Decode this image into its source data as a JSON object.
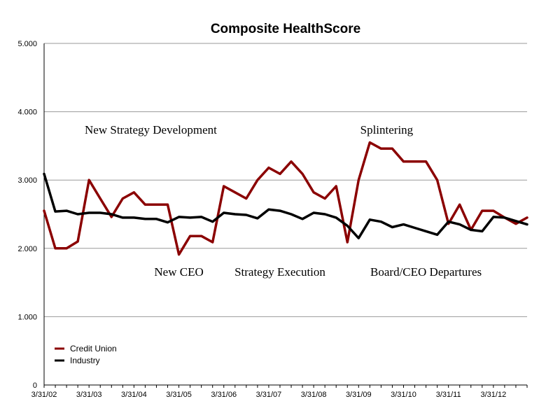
{
  "chart_data": {
    "type": "line",
    "title": "Composite HealthScore",
    "xlabel": "",
    "ylabel": "",
    "ylim": [
      0,
      5
    ],
    "y_ticks": [
      "0",
      "1.000",
      "2.000",
      "3.000",
      "4.000",
      "5.000"
    ],
    "y_tick_values": [
      0,
      1,
      2,
      3,
      4,
      5
    ],
    "x_tick_labels": [
      "3/31/02",
      "3/31/03",
      "3/31/04",
      "3/31/05",
      "3/31/06",
      "3/31/07",
      "3/31/08",
      "3/31/09",
      "3/31/10",
      "3/31/11",
      "3/31/12"
    ],
    "x_count": 44,
    "series": [
      {
        "name": "Credit Union",
        "color": "#8b0000",
        "values": [
          2.55,
          2.0,
          2.0,
          2.1,
          3.0,
          2.73,
          2.46,
          2.73,
          2.82,
          2.64,
          2.64,
          2.64,
          1.91,
          2.18,
          2.18,
          2.09,
          2.91,
          2.82,
          2.73,
          3.0,
          3.18,
          3.09,
          3.27,
          3.09,
          2.82,
          2.73,
          2.91,
          2.09,
          3.0,
          3.55,
          3.46,
          3.46,
          3.27,
          3.27,
          3.27,
          3.0,
          2.36,
          2.64,
          2.27,
          2.55,
          2.55,
          2.45,
          2.36,
          2.45
        ]
      },
      {
        "name": "Industry",
        "color": "#000000",
        "values": [
          3.09,
          2.54,
          2.55,
          2.5,
          2.52,
          2.52,
          2.5,
          2.45,
          2.45,
          2.43,
          2.43,
          2.38,
          2.46,
          2.45,
          2.46,
          2.39,
          2.52,
          2.5,
          2.49,
          2.44,
          2.57,
          2.55,
          2.5,
          2.43,
          2.52,
          2.5,
          2.45,
          2.33,
          2.15,
          2.42,
          2.39,
          2.31,
          2.35,
          2.3,
          2.25,
          2.2,
          2.39,
          2.35,
          2.27,
          2.25,
          2.46,
          2.45,
          2.4,
          2.35
        ]
      }
    ],
    "annotations": [
      {
        "text": "New Strategy Development",
        "x_index": 9.5,
        "y": 3.68
      },
      {
        "text": "Splintering",
        "x_index": 30.5,
        "y": 3.68
      },
      {
        "text": "New CEO",
        "x_index": 12,
        "y": 1.6
      },
      {
        "text": "Strategy Execution",
        "x_index": 21,
        "y": 1.6
      },
      {
        "text": "Board/CEO Departures",
        "x_index": 34,
        "y": 1.6
      }
    ],
    "legend_position": "lower-left"
  }
}
